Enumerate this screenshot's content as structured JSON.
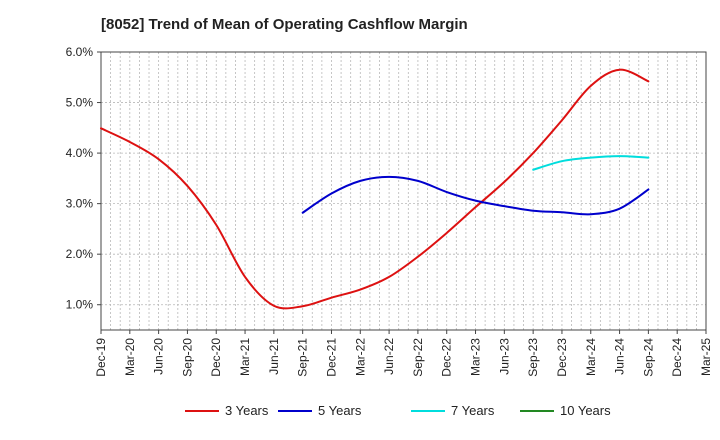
{
  "chart_data": {
    "type": "line",
    "title": "[8052]  Trend of Mean of Operating Cashflow Margin",
    "xlabel": "",
    "ylabel": "",
    "x_ticks": [
      "Dec-19",
      "Mar-20",
      "Jun-20",
      "Sep-20",
      "Dec-20",
      "Mar-21",
      "Jun-21",
      "Sep-21",
      "Dec-21",
      "Mar-22",
      "Jun-22",
      "Sep-22",
      "Dec-22",
      "Mar-23",
      "Jun-23",
      "Sep-23",
      "Dec-23",
      "Mar-24",
      "Jun-24",
      "Sep-24",
      "Dec-24",
      "Mar-25"
    ],
    "y_ticks": [
      1.0,
      2.0,
      3.0,
      4.0,
      5.0,
      6.0
    ],
    "y_tick_labels": [
      "1.0%",
      "2.0%",
      "3.0%",
      "4.0%",
      "5.0%",
      "6.0%"
    ],
    "ylim": [
      0.5,
      6.0
    ],
    "grid": true,
    "legend_position": "bottom",
    "series": [
      {
        "name": "3 Years",
        "color": "#dd1111",
        "points": [
          [
            "Dec-19",
            4.49
          ],
          [
            "Mar-20",
            4.22
          ],
          [
            "Jun-20",
            3.88
          ],
          [
            "Sep-20",
            3.35
          ],
          [
            "Dec-20",
            2.58
          ],
          [
            "Mar-21",
            1.55
          ],
          [
            "Jun-21",
            0.98
          ],
          [
            "Sep-21",
            0.97
          ],
          [
            "Dec-21",
            1.14
          ],
          [
            "Mar-22",
            1.3
          ],
          [
            "Jun-22",
            1.55
          ],
          [
            "Sep-22",
            1.95
          ],
          [
            "Dec-22",
            2.42
          ],
          [
            "Mar-23",
            2.93
          ],
          [
            "Jun-23",
            3.43
          ],
          [
            "Sep-23",
            4.0
          ],
          [
            "Dec-23",
            4.65
          ],
          [
            "Mar-24",
            5.33
          ],
          [
            "Jun-24",
            5.65
          ],
          [
            "Sep-24",
            5.42
          ]
        ]
      },
      {
        "name": "5 Years",
        "color": "#0000cc",
        "points": [
          [
            "Sep-21",
            2.82
          ],
          [
            "Dec-21",
            3.2
          ],
          [
            "Mar-22",
            3.45
          ],
          [
            "Jun-22",
            3.53
          ],
          [
            "Sep-22",
            3.45
          ],
          [
            "Dec-22",
            3.23
          ],
          [
            "Mar-23",
            3.06
          ],
          [
            "Jun-23",
            2.95
          ],
          [
            "Sep-23",
            2.86
          ],
          [
            "Dec-23",
            2.83
          ],
          [
            "Mar-24",
            2.79
          ],
          [
            "Jun-24",
            2.9
          ],
          [
            "Sep-24",
            3.28
          ]
        ]
      },
      {
        "name": "7 Years",
        "color": "#00dddd",
        "points": [
          [
            "Sep-23",
            3.67
          ],
          [
            "Dec-23",
            3.84
          ],
          [
            "Mar-24",
            3.91
          ],
          [
            "Jun-24",
            3.94
          ],
          [
            "Sep-24",
            3.91
          ]
        ]
      },
      {
        "name": "10 Years",
        "color": "#228822",
        "points": []
      }
    ]
  }
}
